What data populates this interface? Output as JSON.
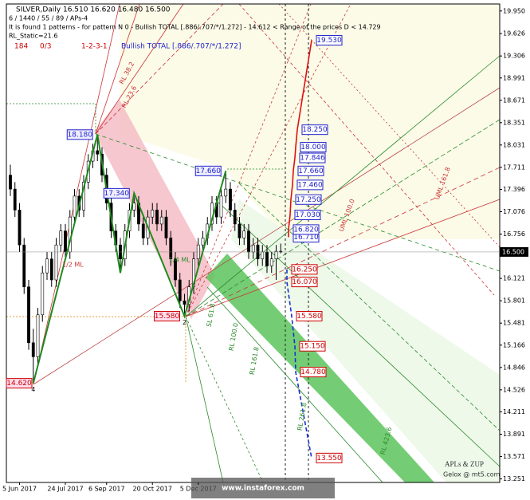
{
  "chart_data": {
    "type": "candlestick",
    "title": "SILVER,Daily  16.510 16.620 16.480 16.500",
    "info_lines": [
      "6 / 1440 / 55 / 89 / APs-4",
      "It is found 1 patterns  -  for pattern N 0 - Bullish TOTAL [.886/.707/*/1.272] - 14.612 < Range of the prices D < 14.729",
      "RL_Static=21.6"
    ],
    "status": [
      "184",
      "0/3",
      "1-2-3-1"
    ],
    "pattern_name": "Bullish TOTAL [.886/.707/*/1.272]",
    "categories": [
      null,
      null,
      "5 Jun 2017",
      null,
      null,
      null,
      null,
      null,
      null,
      null,
      null,
      null,
      "24 Jul 2017",
      null,
      null,
      null,
      null,
      null,
      null,
      null,
      null,
      "6 Sep 2017",
      null,
      null,
      null,
      null,
      null,
      null,
      null,
      null,
      null,
      "20 Oct 2017",
      null,
      null,
      null,
      null,
      null,
      null,
      null,
      null,
      null,
      "5 Dec 2017",
      null,
      null,
      null,
      null,
      null,
      null,
      null,
      null,
      null,
      null,
      null,
      null,
      null,
      null,
      null,
      null,
      null,
      null
    ],
    "open": [
      17.6,
      17.4,
      17.1,
      16.6,
      16.0,
      15.2,
      15.0,
      15.6,
      16.2,
      16.4,
      16.1,
      16.6,
      16.8,
      16.5,
      17.0,
      17.3,
      17.1,
      17.5,
      17.8,
      17.95,
      17.9,
      17.6,
      17.2,
      16.8,
      16.6,
      16.4,
      16.8,
      17.1,
      17.2,
      16.9,
      16.7,
      17.0,
      17.1,
      16.9,
      17.0,
      16.7,
      16.4,
      16.1,
      15.8,
      15.75,
      16.0,
      16.4,
      16.6,
      16.7,
      16.9,
      17.2,
      17.0,
      17.3,
      17.4,
      17.1,
      16.9,
      16.7,
      16.8,
      16.5,
      16.6,
      16.4,
      16.5,
      16.3,
      16.4,
      16.51
    ],
    "high": [
      17.75,
      17.5,
      17.2,
      16.7,
      16.1,
      15.4,
      15.7,
      16.3,
      16.5,
      16.5,
      16.7,
      16.9,
      16.9,
      17.1,
      17.4,
      17.4,
      17.6,
      17.9,
      18.05,
      18.18,
      18.0,
      17.7,
      17.3,
      16.9,
      16.7,
      16.9,
      17.2,
      17.34,
      17.3,
      17.0,
      17.1,
      17.2,
      17.2,
      17.1,
      17.1,
      16.8,
      16.5,
      16.2,
      15.9,
      16.1,
      16.5,
      16.7,
      16.8,
      17.0,
      17.3,
      17.3,
      17.4,
      17.66,
      17.5,
      17.2,
      17.0,
      16.9,
      16.9,
      16.7,
      16.7,
      16.6,
      16.6,
      16.5,
      16.6,
      16.62
    ],
    "low": [
      17.3,
      17.0,
      16.5,
      15.9,
      15.1,
      14.62,
      14.9,
      15.5,
      16.1,
      16.0,
      16.0,
      16.5,
      16.4,
      16.4,
      16.9,
      17.0,
      17.0,
      17.4,
      17.7,
      17.8,
      17.5,
      17.1,
      16.7,
      16.5,
      16.2,
      16.3,
      16.7,
      17.0,
      16.8,
      16.6,
      16.6,
      16.9,
      16.8,
      16.8,
      16.6,
      16.3,
      16.0,
      15.7,
      15.58,
      15.65,
      15.9,
      16.3,
      16.5,
      16.6,
      16.8,
      16.9,
      16.9,
      17.2,
      17.0,
      16.8,
      16.6,
      16.6,
      16.4,
      16.4,
      16.3,
      16.3,
      16.2,
      16.2,
      16.1,
      16.48
    ],
    "close": [
      17.4,
      17.1,
      16.6,
      16.0,
      15.2,
      15.0,
      15.6,
      16.2,
      16.4,
      16.1,
      16.6,
      16.8,
      16.5,
      17.0,
      17.3,
      17.1,
      17.5,
      17.8,
      17.95,
      17.9,
      17.6,
      17.2,
      16.8,
      16.6,
      16.4,
      16.8,
      17.1,
      17.2,
      16.9,
      16.7,
      17.0,
      17.1,
      16.9,
      17.0,
      16.7,
      16.4,
      16.1,
      15.8,
      15.75,
      16.0,
      16.4,
      16.6,
      16.7,
      16.9,
      17.2,
      17.0,
      17.3,
      17.4,
      17.1,
      16.9,
      16.7,
      16.8,
      16.5,
      16.6,
      16.4,
      16.5,
      16.3,
      16.4,
      16.51,
      16.5
    ],
    "ylim": [
      13.2,
      20.05
    ],
    "yticks": [
      {
        "value": 19.95,
        "label": "19.950"
      },
      {
        "value": 19.626,
        "label": "19.626"
      },
      {
        "value": 19.306,
        "label": "19.306"
      },
      {
        "value": 18.991,
        "label": "18.991"
      },
      {
        "value": 18.671,
        "label": "18.671"
      },
      {
        "value": 18.351,
        "label": "18.351"
      },
      {
        "value": 18.031,
        "label": "18.031"
      },
      {
        "value": 17.711,
        "label": "17.711"
      },
      {
        "value": 17.396,
        "label": "17.396"
      },
      {
        "value": 17.076,
        "label": "17.076"
      },
      {
        "value": 16.756,
        "label": "16.756"
      },
      {
        "value": 16.121,
        "label": "16.121"
      },
      {
        "value": 15.801,
        "label": "15.801"
      },
      {
        "value": 15.481,
        "label": "15.481"
      },
      {
        "value": 15.166,
        "label": "15.166"
      },
      {
        "value": 14.846,
        "label": "14.846"
      },
      {
        "value": 14.526,
        "label": "14.526"
      },
      {
        "value": 14.211,
        "label": "14.211"
      },
      {
        "value": 13.891,
        "label": "13.891"
      },
      {
        "value": 13.571,
        "label": "13.571"
      },
      {
        "value": 13.251,
        "label": "13.251"
      }
    ],
    "current_price": {
      "value": 16.5,
      "label": "16.500"
    },
    "pivots": {
      "index": [
        5,
        19,
        24,
        27,
        38,
        47
      ],
      "values": [
        14.62,
        18.18,
        16.2,
        17.34,
        15.58,
        17.66
      ],
      "labels": [
        "14.620",
        "18.180",
        null,
        "17.340",
        "15.580",
        "17.660"
      ],
      "names": [
        "4",
        null,
        null,
        null,
        "2",
        null
      ]
    },
    "targets_up": [
      {
        "value": 16.71,
        "label": "16.710"
      },
      {
        "value": 16.82,
        "label": "16.820"
      },
      {
        "value": 17.03,
        "label": "17.030"
      },
      {
        "value": 17.25,
        "label": "17.250"
      },
      {
        "value": 17.46,
        "label": "17.460"
      },
      {
        "value": 17.66,
        "label": "17.660"
      },
      {
        "value": 17.846,
        "label": "17.846"
      },
      {
        "value": 18.0,
        "label": "18.000"
      },
      {
        "value": 18.25,
        "label": "18.250"
      },
      {
        "value": 19.53,
        "label": "19.530"
      }
    ],
    "targets_down": [
      {
        "value": 16.25,
        "label": "16.250"
      },
      {
        "value": 16.07,
        "label": "16.070"
      },
      {
        "value": 15.58,
        "label": "15.580"
      },
      {
        "value": 15.15,
        "label": "15.150"
      },
      {
        "value": 14.78,
        "label": "14.780"
      },
      {
        "value": 13.55,
        "label": "13.550"
      }
    ],
    "annotations": [
      "1/2 ML",
      "1/4 ML",
      "RL 38.2",
      "RL 23.6",
      "UML 161.8",
      "UML 100.0",
      "SL 61.8",
      "RL 100.0",
      "RL 161.8",
      "RL 261.8",
      "RL 423.6"
    ],
    "credits": [
      "APLs & ZUP",
      "Gelox @ mt5.com"
    ],
    "watermark": "www.instaforex.com"
  }
}
